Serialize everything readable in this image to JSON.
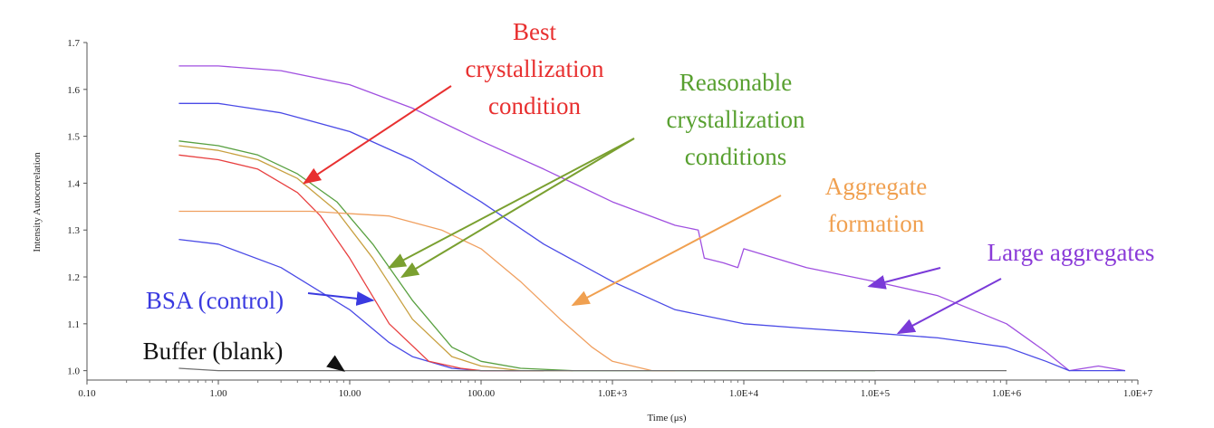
{
  "chart_data": {
    "type": "line",
    "xlabel": "Time (μs)",
    "ylabel": "Intensity Autocorrelation",
    "x_scale": "log",
    "xlim": [
      0.1,
      10000000
    ],
    "ylim": [
      0.98,
      1.7
    ],
    "x_ticks": [
      0.1,
      1,
      10,
      100,
      1000,
      10000,
      100000,
      1000000,
      10000000
    ],
    "x_tick_labels": [
      "0.10",
      "1.00",
      "10.00",
      "100.00",
      "1.0E+3",
      "1.0E+4",
      "1.0E+5",
      "1.0E+6",
      "1.0E+7"
    ],
    "y_ticks": [
      1.0,
      1.1,
      1.2,
      1.3,
      1.4,
      1.5,
      1.6,
      1.7
    ],
    "y_tick_labels": [
      "1.0",
      "1.1",
      "1.2",
      "1.3",
      "1.4",
      "1.5",
      "1.6",
      "1.7"
    ],
    "grid": false,
    "series": [
      {
        "color": "#a050e0",
        "x": [
          0.5,
          1,
          3,
          10,
          30,
          100,
          300,
          1000,
          3000,
          4500,
          5000,
          7000,
          9000,
          10000,
          30000,
          100000,
          300000,
          1000000,
          2000000,
          3000000,
          5000000,
          8000000
        ],
        "y": [
          1.65,
          1.65,
          1.64,
          1.61,
          1.56,
          1.49,
          1.43,
          1.36,
          1.31,
          1.3,
          1.24,
          1.23,
          1.22,
          1.26,
          1.22,
          1.19,
          1.16,
          1.1,
          1.04,
          1.0,
          1.01,
          1.0
        ]
      },
      {
        "color": "#4a4ae6",
        "x": [
          0.5,
          1,
          3,
          10,
          30,
          100,
          300,
          1000,
          3000,
          10000,
          30000,
          100000,
          300000,
          1000000,
          2000000,
          3000000,
          5000000,
          8000000
        ],
        "y": [
          1.57,
          1.57,
          1.55,
          1.51,
          1.45,
          1.36,
          1.27,
          1.19,
          1.13,
          1.1,
          1.09,
          1.08,
          1.07,
          1.05,
          1.02,
          1.0,
          1.0,
          1.0
        ]
      },
      {
        "color": "#4a4ae6",
        "x": [
          0.5,
          1,
          3,
          10,
          20,
          30,
          60,
          100,
          300
        ],
        "y": [
          1.28,
          1.27,
          1.22,
          1.13,
          1.06,
          1.03,
          1.005,
          1.0,
          1.0
        ]
      },
      {
        "color": "#e84040",
        "x": [
          0.5,
          1,
          2,
          4,
          6,
          10,
          20,
          40,
          70,
          100,
          300
        ],
        "y": [
          1.46,
          1.45,
          1.43,
          1.38,
          1.33,
          1.24,
          1.1,
          1.02,
          1.005,
          1.0,
          1.0
        ]
      },
      {
        "color": "#c8a040",
        "x": [
          0.5,
          1,
          2,
          4,
          8,
          15,
          30,
          60,
          100,
          200,
          500
        ],
        "y": [
          1.48,
          1.47,
          1.45,
          1.41,
          1.34,
          1.24,
          1.11,
          1.03,
          1.01,
          1.0,
          1.0
        ]
      },
      {
        "color": "#58a040",
        "x": [
          0.5,
          1,
          2,
          4,
          8,
          15,
          30,
          60,
          100,
          200,
          500,
          10000,
          100000
        ],
        "y": [
          1.49,
          1.48,
          1.46,
          1.42,
          1.36,
          1.27,
          1.15,
          1.05,
          1.02,
          1.005,
          1.0,
          1.0,
          1.0
        ]
      },
      {
        "color": "#f0a060",
        "x": [
          0.5,
          1,
          5,
          20,
          50,
          100,
          200,
          400,
          700,
          1000,
          2000,
          3000
        ],
        "y": [
          1.34,
          1.34,
          1.34,
          1.33,
          1.3,
          1.26,
          1.19,
          1.11,
          1.05,
          1.02,
          1.0,
          1.0
        ]
      },
      {
        "color": "#707070",
        "x": [
          0.5,
          1,
          10,
          100,
          1000,
          10000,
          100000,
          1000000
        ],
        "y": [
          1.005,
          1.0,
          1.0,
          1.0,
          1.0,
          1.0,
          1.0,
          1.0
        ]
      }
    ],
    "annotations": [
      {
        "lines": [
          "Best",
          "crystallization",
          "condition"
        ],
        "color": "#e83030",
        "arrow_color": "#e83030",
        "arrows_to": [
          [
            4.5,
            1.4
          ]
        ]
      },
      {
        "lines": [
          "Reasonable",
          "crystallization",
          "conditions"
        ],
        "color": "#58a030",
        "arrow_color": "#7aa030",
        "arrows_to": [
          [
            20,
            1.22
          ],
          [
            25,
            1.2
          ]
        ]
      },
      {
        "lines": [
          "Aggregate",
          "formation"
        ],
        "color": "#f0a050",
        "arrow_color": "#f0a050",
        "arrows_to": [
          [
            500,
            1.14
          ]
        ]
      },
      {
        "lines": [
          "Large aggregates"
        ],
        "color": "#8a3ad8",
        "arrow_color": "#7a3ad8",
        "arrows_to": [
          [
            90000,
            1.18
          ],
          [
            150000,
            1.08
          ]
        ]
      },
      {
        "lines": [
          "BSA (control)"
        ],
        "color": "#3a3ae0",
        "arrow_color": "#3a3ae0",
        "arrows_to": [
          [
            15,
            1.15
          ]
        ]
      },
      {
        "lines": [
          "Buffer (blank)"
        ],
        "color": "#111111",
        "arrow_color": "#111111",
        "arrows_to": [
          [
            9,
            1.0
          ]
        ]
      }
    ]
  }
}
